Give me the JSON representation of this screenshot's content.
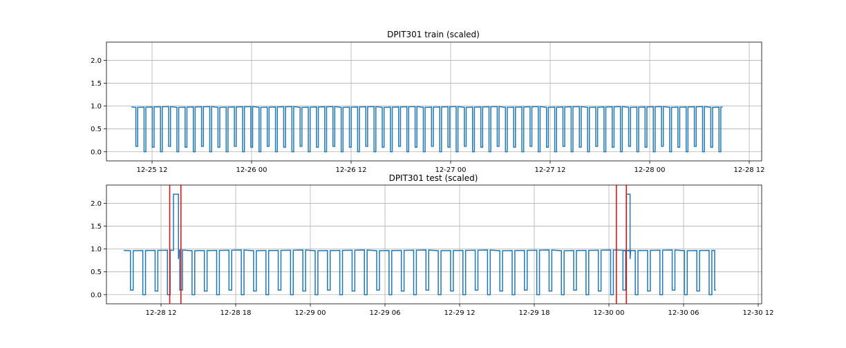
{
  "chart_data": [
    {
      "type": "line",
      "title": "DPIT301 train (scaled)",
      "xlabel": "",
      "ylabel": "",
      "xlim_hours": [
        -16.3,
        54.6
      ],
      "ylim": [
        -0.2,
        2.4
      ],
      "x_ticks": [
        {
          "hour": 12,
          "label": "12-25 12"
        },
        {
          "hour": 24,
          "label": "12-26 00"
        },
        {
          "hour": 36,
          "label": "12-26 12"
        },
        {
          "hour": 48,
          "label": "12-27 00"
        },
        {
          "hour": 60,
          "label": "12-27 12"
        },
        {
          "hour": 72,
          "label": "12-28 00"
        },
        {
          "hour": 84,
          "label": "12-28 12"
        }
      ],
      "y_ticks": [
        0.0,
        0.5,
        1.0,
        1.5,
        2.0
      ],
      "y_tick_labels": [
        "0.0",
        "0.5",
        "1.0",
        "1.5",
        "2.0"
      ],
      "grid": true,
      "series": [
        {
          "color": "#1f77b4",
          "start_hour": 9.5,
          "end_hour": 80.8,
          "high_value": 0.98,
          "dip_count": 72,
          "dip_values": [
            0.12,
            0.0,
            0.1,
            0.0
          ]
        }
      ]
    },
    {
      "type": "line",
      "title": "DPIT301 test (scaled)",
      "xlabel": "",
      "ylabel": "",
      "xlim_hours": [
        -16.3,
        54.6
      ],
      "ylim": [
        -0.2,
        2.4
      ],
      "x_ticks": [
        {
          "hour": 12,
          "label": "12-28 12"
        },
        {
          "hour": 18,
          "label": "12-28 18"
        },
        {
          "hour": 24,
          "label": "12-29 00"
        },
        {
          "hour": 30,
          "label": "12-29 06"
        },
        {
          "hour": 36,
          "label": "12-29 12"
        },
        {
          "hour": 42,
          "label": "12-29 18"
        },
        {
          "hour": 48,
          "label": "12-30 00"
        },
        {
          "hour": 54,
          "label": "12-30 06"
        },
        {
          "hour": 60,
          "label": "12-30 12"
        }
      ],
      "y_ticks": [
        0.0,
        0.5,
        1.0,
        1.5,
        2.0
      ],
      "y_tick_labels": [
        "0.0",
        "0.5",
        "1.0",
        "1.5",
        "2.0"
      ],
      "grid": true,
      "series": [
        {
          "color": "#1f77b4",
          "start_hour": 9.0,
          "end_hour": 56.5,
          "high_value": 0.97,
          "dip_count": 48,
          "dip_values": [
            0.1,
            0.0,
            0.08,
            0.0
          ],
          "spikes": [
            {
              "start_hour": 13.0,
              "end_hour": 13.4,
              "value": 2.2
            },
            {
              "start_hour": 49.4,
              "end_hour": 49.7,
              "value": 2.2
            }
          ]
        }
      ],
      "anomaly_markers": {
        "color": "#ff0000",
        "x_hours": [
          12.7,
          13.6,
          48.6,
          49.4
        ]
      }
    }
  ]
}
